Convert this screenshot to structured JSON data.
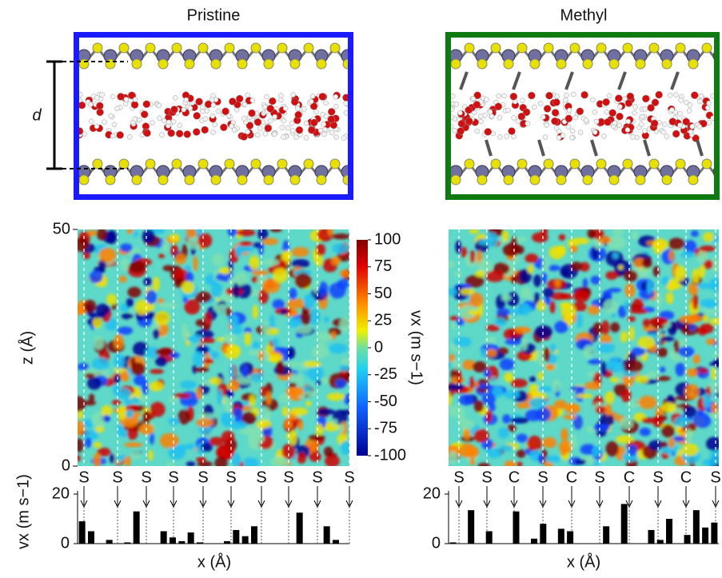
{
  "chart_data": [
    {
      "type": "heatmap",
      "title": "Pristine",
      "annotation": "d",
      "ylabel": "z (Å)",
      "ylim": [
        0,
        50
      ],
      "yticks": [
        0,
        50
      ],
      "colorbar": {
        "label": "vx (m s−1)",
        "lim": [
          -100,
          100
        ],
        "ticks": [
          100,
          75,
          50,
          25,
          0,
          -25,
          -50,
          -75,
          -100
        ]
      }
    },
    {
      "type": "heatmap",
      "title": "Methyl"
    },
    {
      "type": "bar",
      "ylabel": "vx (m s−1)",
      "xlabel": "x (Å)",
      "ylim": [
        0,
        20
      ],
      "yticks": [
        0,
        20
      ],
      "color": "#000000",
      "site_labels": [
        "S",
        "S",
        "S",
        "S",
        "S",
        "S",
        "S",
        "S",
        "S",
        "S"
      ],
      "categories": [
        null,
        null,
        null,
        null,
        null,
        null,
        null,
        null,
        null,
        null,
        null,
        null,
        null,
        null,
        null,
        null,
        null,
        null,
        null,
        null,
        null,
        null,
        null,
        null,
        null,
        null,
        null,
        null,
        null,
        null
      ],
      "values": [
        9,
        5,
        null,
        1.5,
        null,
        0.5,
        13,
        null,
        null,
        5,
        2.5,
        1,
        4.5,
        0.5,
        null,
        null,
        1,
        5.5,
        3,
        7,
        null,
        null,
        null,
        null,
        12.5,
        null,
        null,
        7,
        1.5,
        null
      ]
    },
    {
      "type": "bar",
      "xlabel": "x (Å)",
      "ylim": [
        0,
        20
      ],
      "yticks": [
        0,
        20
      ],
      "color": "#000000",
      "site_labels": [
        "S",
        "S",
        "C",
        "S",
        "C",
        "S",
        "C",
        "S",
        "C",
        "S"
      ],
      "categories": [
        null,
        null,
        null,
        null,
        null,
        null,
        null,
        null,
        null,
        null,
        null,
        null,
        null,
        null,
        null,
        null,
        null,
        null,
        null,
        null,
        null,
        null,
        null,
        null,
        null,
        null,
        null,
        null,
        null,
        null
      ],
      "values": [
        0.5,
        null,
        13.5,
        null,
        5,
        null,
        null,
        13,
        null,
        2,
        8,
        null,
        6,
        5,
        null,
        null,
        null,
        7,
        null,
        16,
        null,
        null,
        5.5,
        1.5,
        10,
        null,
        3.5,
        13.5,
        6.5,
        8.5
      ]
    }
  ]
}
